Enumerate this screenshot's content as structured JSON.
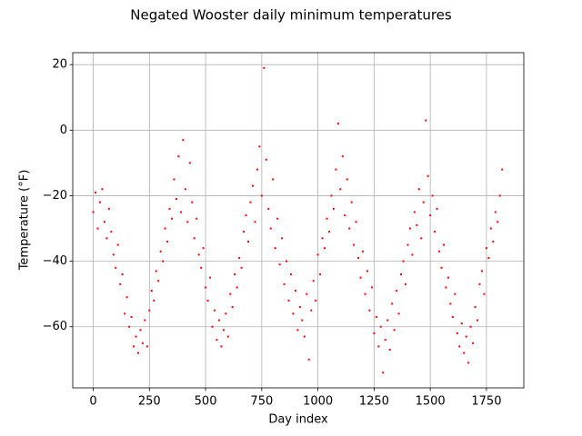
{
  "chart_data": {
    "type": "scatter",
    "title": "Negated Wooster daily minimum temperatures",
    "x_label": "Day index",
    "y_label": "Temperature (°F)",
    "color": "#ff0000",
    "grid": true,
    "xlim": [
      -91.25,
      1916.25
    ],
    "ylim": [
      -78.65,
      23.65
    ],
    "xticks": [
      0,
      250,
      500,
      750,
      1000,
      1250,
      1500,
      1750
    ],
    "yticks": [
      {
        "value": -60,
        "label": "−60"
      },
      {
        "value": -40,
        "label": "−40"
      },
      {
        "value": -20,
        "label": "−20"
      },
      0,
      20
    ],
    "x": [
      0,
      10,
      20,
      30,
      40,
      50,
      60,
      70,
      80,
      90,
      100,
      110,
      120,
      130,
      140,
      150,
      160,
      170,
      180,
      190,
      200,
      210,
      220,
      230,
      240,
      250,
      260,
      270,
      280,
      290,
      300,
      310,
      320,
      330,
      340,
      350,
      360,
      370,
      380,
      390,
      400,
      410,
      420,
      430,
      440,
      450,
      460,
      470,
      480,
      490,
      500,
      510,
      520,
      530,
      540,
      550,
      560,
      570,
      580,
      590,
      600,
      610,
      620,
      630,
      640,
      650,
      660,
      670,
      680,
      690,
      700,
      710,
      720,
      730,
      740,
      750,
      760,
      770,
      780,
      790,
      800,
      810,
      820,
      830,
      840,
      850,
      860,
      870,
      880,
      890,
      900,
      910,
      920,
      930,
      940,
      950,
      960,
      970,
      980,
      990,
      1000,
      1010,
      1020,
      1030,
      1040,
      1050,
      1060,
      1070,
      1080,
      1090,
      1100,
      1110,
      1120,
      1130,
      1140,
      1150,
      1160,
      1170,
      1180,
      1190,
      1200,
      1210,
      1220,
      1230,
      1240,
      1250,
      1260,
      1270,
      1280,
      1290,
      1300,
      1310,
      1320,
      1330,
      1340,
      1350,
      1360,
      1370,
      1380,
      1390,
      1400,
      1410,
      1420,
      1430,
      1440,
      1450,
      1460,
      1470,
      1480,
      1490,
      1500,
      1510,
      1520,
      1530,
      1540,
      1550,
      1560,
      1570,
      1580,
      1590,
      1600,
      1610,
      1620,
      1630,
      1640,
      1650,
      1660,
      1670,
      1680,
      1690,
      1700,
      1710,
      1720,
      1730,
      1740,
      1750,
      1760,
      1770,
      1780,
      1790,
      1800,
      1810,
      1820
    ],
    "values": [
      -25,
      -19,
      -30,
      -22,
      -18,
      -28,
      -33,
      -24,
      -31,
      -38,
      -42,
      -35,
      -47,
      -44,
      -56,
      -51,
      -60,
      -57,
      -66,
      -63,
      -68,
      -61,
      -65,
      -58,
      -66,
      -55,
      -49,
      -52,
      -43,
      -46,
      -37,
      -40,
      -30,
      -34,
      -24,
      -27,
      -15,
      -21,
      -8,
      -25,
      -3,
      -18,
      -28,
      -10,
      -22,
      -33,
      -27,
      -38,
      -42,
      -36,
      -48,
      -52,
      -45,
      -60,
      -55,
      -64,
      -58,
      -66,
      -61,
      -56,
      -63,
      -50,
      -54,
      -44,
      -48,
      -39,
      -42,
      -31,
      -26,
      -34,
      -22,
      -17,
      -28,
      -12,
      -5,
      -20,
      19,
      -9,
      -24,
      -30,
      -15,
      -36,
      -27,
      -41,
      -33,
      -47,
      -40,
      -52,
      -44,
      -56,
      -49,
      -61,
      -54,
      -58,
      -63,
      -50,
      -70,
      -55,
      -46,
      -52,
      -38,
      -44,
      -33,
      -36,
      -27,
      -31,
      -20,
      -24,
      -12,
      2,
      -18,
      -8,
      -26,
      -15,
      -30,
      -22,
      -35,
      -28,
      -39,
      -45,
      -37,
      -50,
      -43,
      -55,
      -48,
      -62,
      -57,
      -66,
      -60,
      -74,
      -64,
      -58,
      -67,
      -53,
      -61,
      -49,
      -56,
      -44,
      -40,
      -47,
      -35,
      -30,
      -38,
      -25,
      -29,
      -18,
      -33,
      -22,
      3,
      -14,
      -26,
      -20,
      -31,
      -24,
      -37,
      -42,
      -35,
      -48,
      -45,
      -53,
      -57,
      -50,
      -62,
      -66,
      -59,
      -68,
      -63,
      -71,
      -60,
      -65,
      -54,
      -58,
      -47,
      -43,
      -50,
      -36,
      -39,
      -30,
      -34,
      -25,
      -28,
      -20,
      -12
    ]
  }
}
